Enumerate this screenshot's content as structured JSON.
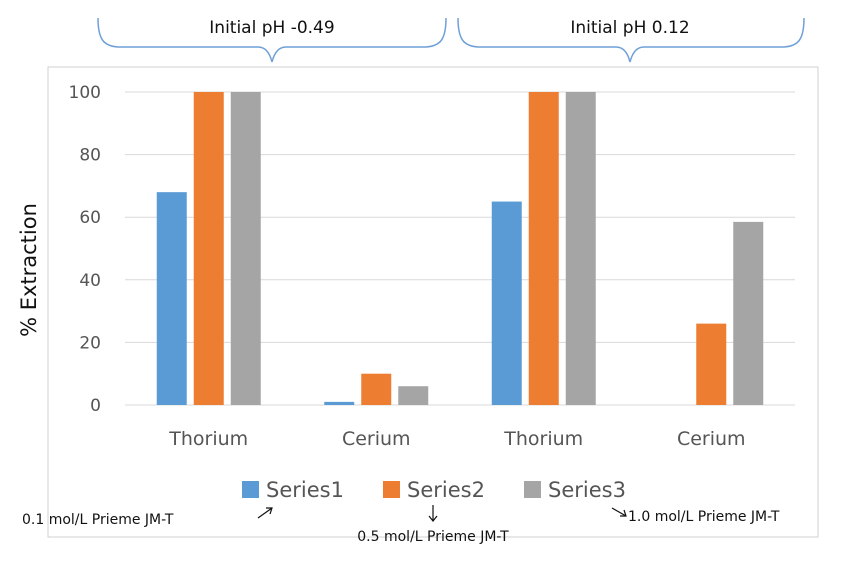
{
  "chart_data": {
    "type": "bar",
    "ylabel": "% Extraction",
    "xlabel": "",
    "ylim": [
      0,
      100
    ],
    "yticks": [
      0,
      20,
      40,
      60,
      80,
      100
    ],
    "grid": true,
    "legend_position": "bottom",
    "categories": [
      "Thorium",
      "Cerium",
      "Thorium",
      "Cerium"
    ],
    "series": [
      {
        "name": "Series1",
        "color": "#5B9BD5",
        "values": [
          68,
          1,
          65,
          0
        ]
      },
      {
        "name": "Series2",
        "color": "#ED7D31",
        "values": [
          100,
          10,
          100,
          26
        ]
      },
      {
        "name": "Series3",
        "color": "#A5A5A5",
        "values": [
          100,
          6,
          100,
          58.5
        ]
      }
    ],
    "group_labels": [
      "Initial pH -0.49",
      "Initial pH 0.12"
    ],
    "legend_annotations": [
      "0.1 mol/L Prieme JM-T",
      "0.5 mol/L Prieme JM-T",
      "1.0 mol/L Prieme JM-T"
    ]
  }
}
